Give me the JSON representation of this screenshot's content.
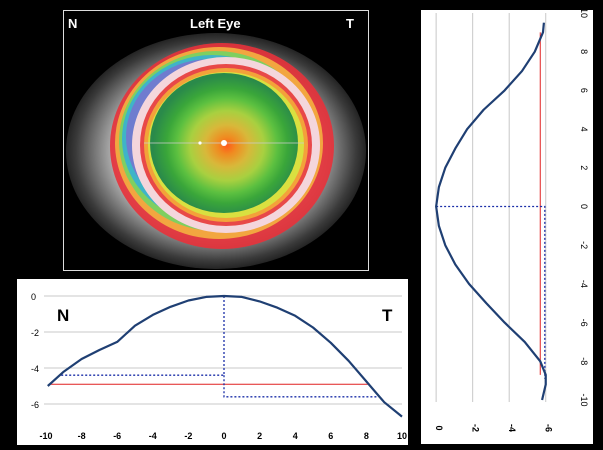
{
  "topography": {
    "title": "Left Eye",
    "nasal_label": "N",
    "temporal_label": "T"
  },
  "chart_data": [
    {
      "type": "line",
      "id": "horizontal-profile",
      "left_label": "N",
      "right_label": "T",
      "xlim": [
        -10,
        10
      ],
      "ylim": [
        -7,
        0.5
      ],
      "xticks": [
        -10,
        -8,
        -6,
        -4,
        -2,
        0,
        2,
        4,
        6,
        8,
        10
      ],
      "yticks": [
        0,
        -2,
        -4,
        -6
      ],
      "grid": "horizontal",
      "colors": {
        "profile": "#1f3f73",
        "reference": "#e02020",
        "guide": "#1a2ea8"
      },
      "series": [
        {
          "values_x": [
            -9.9,
            -9,
            -8,
            -7,
            -6,
            -5,
            -4,
            -3,
            -2,
            -1,
            0,
            1,
            2,
            3,
            4,
            5,
            6,
            7,
            8,
            9,
            10
          ],
          "values_y": [
            -5.0,
            -4.2,
            -3.5,
            -3.0,
            -2.55,
            -1.65,
            -1.05,
            -0.6,
            -0.25,
            -0.05,
            0,
            -0.05,
            -0.3,
            -0.65,
            -1.1,
            -1.75,
            -2.6,
            -3.6,
            -4.75,
            -5.9,
            -6.7
          ]
        }
      ],
      "reference_line": {
        "y": -4.9,
        "x": [
          -9.8,
          8.2
        ]
      },
      "guides": [
        {
          "points": [
            [
              0,
              0
            ],
            [
              0,
              -4.4
            ],
            [
              -9.2,
              -4.4
            ]
          ]
        },
        {
          "points": [
            [
              0,
              -4.4
            ],
            [
              0,
              -5.6
            ],
            [
              8.7,
              -5.6
            ]
          ]
        }
      ]
    },
    {
      "type": "line",
      "id": "vertical-profile",
      "orientation": "rotated",
      "xlim": [
        -7,
        0.5
      ],
      "ylim": [
        -10,
        10
      ],
      "xticks": [
        0,
        -2,
        -4,
        -6
      ],
      "yticks": [
        10,
        8,
        6,
        4,
        2,
        0,
        -2,
        -4,
        -6,
        -8,
        -10
      ],
      "grid": "vertical",
      "colors": {
        "profile": "#1f3f73",
        "reference": "#e02020",
        "guide": "#1a2ea8"
      },
      "series": [
        {
          "values_y": [
            9.5,
            9.0,
            8,
            7,
            6,
            5,
            4,
            3,
            2,
            1,
            0,
            -1,
            -2,
            -3,
            -4,
            -5,
            -6,
            -7,
            -8,
            -8.7,
            -9.2,
            -10
          ],
          "values_x": [
            -5.9,
            -5.85,
            -5.4,
            -4.7,
            -3.75,
            -2.6,
            -1.7,
            -1.05,
            -0.5,
            -0.15,
            0,
            -0.15,
            -0.5,
            -1.05,
            -1.8,
            -2.75,
            -3.75,
            -4.85,
            -5.7,
            -6.0,
            -6.0,
            -5.8
          ]
        }
      ],
      "reference_line": {
        "x": -5.7,
        "y": [
          9.0,
          -8.7
        ]
      },
      "guides": [
        {
          "points": [
            [
              0,
              0
            ],
            [
              -5.95,
              0
            ],
            [
              -5.95,
              -8.9
            ]
          ]
        }
      ]
    }
  ]
}
